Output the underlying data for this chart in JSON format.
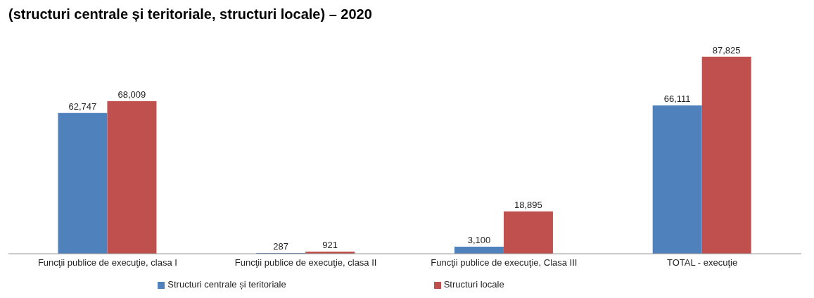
{
  "chart_data": {
    "type": "bar",
    "title": "(structuri centrale și teritoriale, structuri locale) – 2020",
    "categories": [
      "Funcţii publice de execuţie, clasa I",
      "Funcţii publice de execuţie, clasa II",
      "Funcţii publice de execuţie, Clasa III",
      "TOTAL - execuţie"
    ],
    "series": [
      {
        "name": "Structuri centrale și teritoriale",
        "color": "#4f81bd",
        "values": [
          62747,
          287,
          3100,
          66111
        ],
        "value_labels": [
          "62,747",
          "287",
          "3,100",
          "66,111"
        ]
      },
      {
        "name": "Structuri locale",
        "color": "#c0504d",
        "values": [
          68009,
          921,
          18895,
          87825
        ],
        "value_labels": [
          "68,009",
          "921",
          "18,895",
          "87,825"
        ]
      }
    ],
    "tick_labels": "x",
    "legend": "bottom"
  }
}
